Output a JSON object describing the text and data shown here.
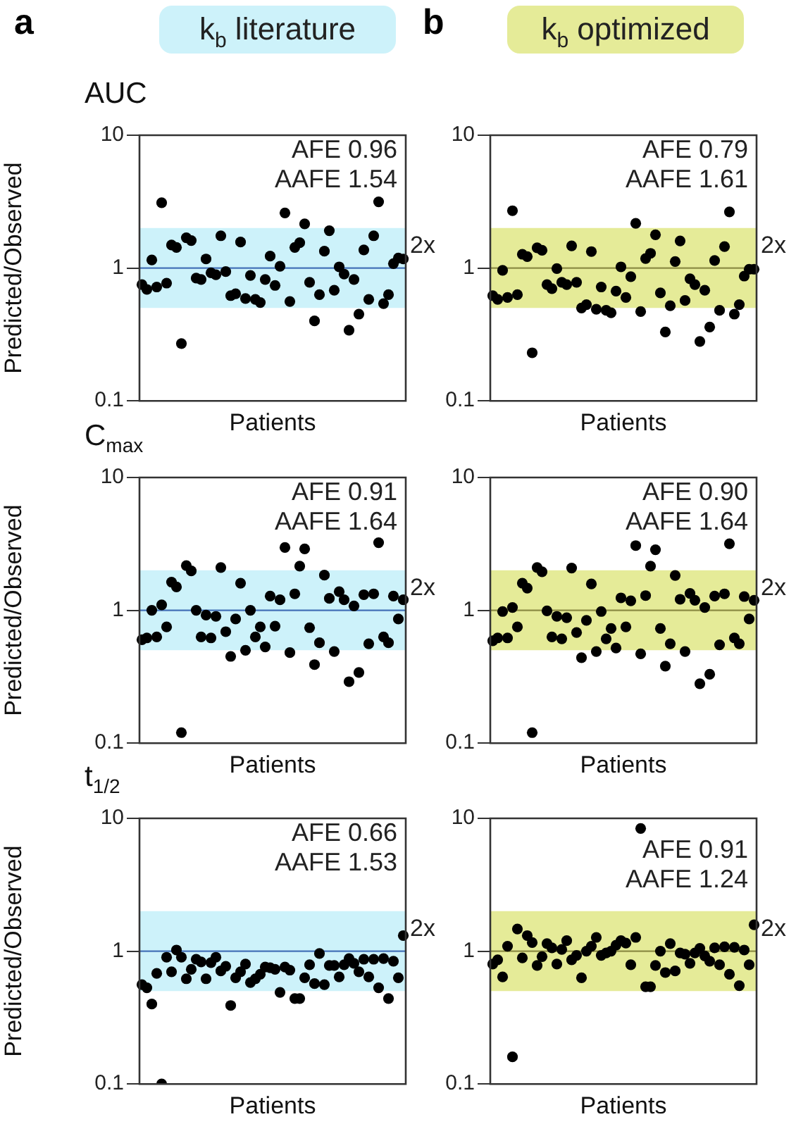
{
  "chart_data": [
    {
      "type": "scatter",
      "title": "k$_{b}$ literature",
      "subtitle": "AUC",
      "xlabel": "Patients",
      "ylabel": "Predicted/Observed",
      "annotations": [
        "a",
        "AFE 0.96",
        "AAFE 1.54"
      ],
      "categories": [
        null,
        null,
        null,
        null,
        null,
        null,
        null,
        null,
        null,
        null,
        null,
        null,
        null,
        null,
        null,
        null,
        null,
        null,
        null,
        null,
        null,
        null,
        null,
        null,
        null,
        null,
        null,
        null,
        null,
        null,
        null,
        null,
        null,
        null,
        null,
        null,
        null,
        null,
        null,
        null,
        null,
        null,
        null,
        null,
        null,
        null,
        null,
        null,
        null,
        null,
        null,
        null,
        null,
        null
      ],
      "values": [
        0.75,
        0.69,
        1.15,
        0.72,
        3.1,
        0.77,
        1.49,
        1.43,
        0.27,
        1.69,
        1.61,
        0.84,
        0.82,
        1.17,
        0.92,
        0.89,
        1.75,
        0.94,
        0.62,
        0.64,
        1.57,
        0.59,
        0.88,
        0.58,
        0.55,
        0.82,
        1.23,
        0.74,
        1.03,
        2.6,
        0.56,
        1.43,
        1.55,
        2.15,
        0.78,
        0.4,
        0.63,
        1.34,
        1.91,
        0.68,
        1.02,
        0.9,
        0.34,
        0.82,
        0.45,
        1.37,
        0.58,
        1.75,
        3.15,
        0.54,
        0.63,
        1.08,
        1.19,
        1.17
      ],
      "color": "#000000",
      "marker": "circle",
      "log": "y",
      "ylim": [
        0.1,
        10
      ],
      "yticks": [
        0.1,
        1,
        10
      ],
      "tick_labels": "y",
      "bands": [
        {
          "axis": "y",
          "from": 0.5,
          "to": 2,
          "label": "2x",
          "color": "#cdf2fa"
        }
      ],
      "ref_lines": [
        {
          "axis": "y",
          "value": 1,
          "color": "#4472b8"
        }
      ]
    },
    {
      "type": "scatter",
      "title": "k$_{b}$ optimized",
      "xlabel": "Patients",
      "annotations": [
        "b",
        "AFE 0.79",
        "AAFE 1.61"
      ],
      "categories": [
        null,
        null,
        null,
        null,
        null,
        null,
        null,
        null,
        null,
        null,
        null,
        null,
        null,
        null,
        null,
        null,
        null,
        null,
        null,
        null,
        null,
        null,
        null,
        null,
        null,
        null,
        null,
        null,
        null,
        null,
        null,
        null,
        null,
        null,
        null,
        null,
        null,
        null,
        null,
        null,
        null,
        null,
        null,
        null,
        null,
        null,
        null,
        null,
        null,
        null,
        null,
        null,
        null,
        null
      ],
      "values": [
        0.62,
        0.58,
        0.96,
        0.6,
        2.7,
        0.63,
        1.27,
        1.22,
        0.23,
        1.42,
        1.36,
        0.75,
        0.7,
        0.99,
        0.78,
        0.75,
        1.47,
        0.78,
        0.5,
        0.53,
        1.33,
        0.49,
        0.72,
        0.48,
        0.46,
        0.67,
        1.02,
        0.6,
        0.86,
        2.17,
        0.47,
        1.18,
        1.29,
        1.78,
        0.65,
        0.33,
        0.52,
        1.12,
        1.6,
        0.57,
        0.83,
        0.75,
        0.28,
        0.68,
        0.36,
        1.14,
        0.48,
        1.45,
        2.65,
        0.45,
        0.53,
        0.87,
        0.98,
        0.98
      ],
      "color": "#000000",
      "marker": "circle",
      "log": "y",
      "ylim": [
        0.1,
        10
      ],
      "yticks": [
        0.1,
        1,
        10
      ],
      "tick_labels": "y",
      "bands": [
        {
          "axis": "y",
          "from": 0.5,
          "to": 2,
          "label": "2x",
          "color": "#e5eb98"
        }
      ],
      "ref_lines": [
        {
          "axis": "y",
          "value": 1,
          "color": "#8c8c44"
        }
      ]
    },
    {
      "type": "scatter",
      "subtitle": "C$_{max}$",
      "xlabel": "Patients",
      "ylabel": "Predicted/Observed",
      "annotations": [
        "AFE 0.91",
        "AAFE 1.64"
      ],
      "categories": [
        null,
        null,
        null,
        null,
        null,
        null,
        null,
        null,
        null,
        null,
        null,
        null,
        null,
        null,
        null,
        null,
        null,
        null,
        null,
        null,
        null,
        null,
        null,
        null,
        null,
        null,
        null,
        null,
        null,
        null,
        null,
        null,
        null,
        null,
        null,
        null,
        null,
        null,
        null,
        null,
        null,
        null,
        null,
        null,
        null,
        null,
        null,
        null,
        null,
        null,
        null,
        null,
        null,
        null
      ],
      "values": [
        0.6,
        0.62,
        1.0,
        0.63,
        1.1,
        0.75,
        1.63,
        1.5,
        0.12,
        2.17,
        1.98,
        1.0,
        0.63,
        0.92,
        0.62,
        0.9,
        2.1,
        0.69,
        0.45,
        0.86,
        1.6,
        0.5,
        1.0,
        0.63,
        0.75,
        0.53,
        1.28,
        0.76,
        1.2,
        2.97,
        0.48,
        1.33,
        2.15,
        2.9,
        0.74,
        0.39,
        0.57,
        1.84,
        1.23,
        0.49,
        1.38,
        1.2,
        0.29,
        1.08,
        0.34,
        1.31,
        0.56,
        1.33,
        3.23,
        0.63,
        0.57,
        1.28,
        0.86,
        1.2
      ],
      "color": "#000000",
      "marker": "circle",
      "log": "y",
      "ylim": [
        0.1,
        10
      ],
      "yticks": [
        0.1,
        1,
        10
      ],
      "tick_labels": "y",
      "bands": [
        {
          "axis": "y",
          "from": 0.5,
          "to": 2,
          "label": "2x",
          "color": "#cdf2fa"
        }
      ],
      "ref_lines": [
        {
          "axis": "y",
          "value": 1,
          "color": "#4472b8"
        }
      ]
    },
    {
      "type": "scatter",
      "xlabel": "Patients",
      "annotations": [
        "AFE 0.90",
        "AAFE 1.64"
      ],
      "categories": [
        null,
        null,
        null,
        null,
        null,
        null,
        null,
        null,
        null,
        null,
        null,
        null,
        null,
        null,
        null,
        null,
        null,
        null,
        null,
        null,
        null,
        null,
        null,
        null,
        null,
        null,
        null,
        null,
        null,
        null,
        null,
        null,
        null,
        null,
        null,
        null,
        null,
        null,
        null,
        null,
        null,
        null,
        null,
        null,
        null,
        null,
        null,
        null,
        null,
        null,
        null,
        null,
        null,
        null
      ],
      "values": [
        0.59,
        0.62,
        0.98,
        0.62,
        1.05,
        0.75,
        1.6,
        1.47,
        0.12,
        2.1,
        1.95,
        0.99,
        0.63,
        0.9,
        0.61,
        0.88,
        2.08,
        0.68,
        0.44,
        0.84,
        1.58,
        0.49,
        0.98,
        0.61,
        0.73,
        0.52,
        1.24,
        0.75,
        1.18,
        3.07,
        0.47,
        1.29,
        2.15,
        2.86,
        0.73,
        0.38,
        0.56,
        1.83,
        1.21,
        0.49,
        1.34,
        1.19,
        0.28,
        1.05,
        0.33,
        1.28,
        0.55,
        1.33,
        3.17,
        0.62,
        0.56,
        1.27,
        0.86,
        1.19
      ],
      "color": "#000000",
      "marker": "circle",
      "log": "y",
      "ylim": [
        0.1,
        10
      ],
      "yticks": [
        0.1,
        1,
        10
      ],
      "tick_labels": "y",
      "bands": [
        {
          "axis": "y",
          "from": 0.5,
          "to": 2,
          "label": "2x",
          "color": "#e5eb98"
        }
      ],
      "ref_lines": [
        {
          "axis": "y",
          "value": 1,
          "color": "#8c8c44"
        }
      ]
    },
    {
      "type": "scatter",
      "subtitle": "t$_{1/2}$",
      "xlabel": "Patients",
      "ylabel": "Predicted/Observed",
      "annotations": [
        "AFE 0.66",
        "AAFE 1.53"
      ],
      "categories": [
        null,
        null,
        null,
        null,
        null,
        null,
        null,
        null,
        null,
        null,
        null,
        null,
        null,
        null,
        null,
        null,
        null,
        null,
        null,
        null,
        null,
        null,
        null,
        null,
        null,
        null,
        null,
        null,
        null,
        null,
        null,
        null,
        null,
        null,
        null,
        null,
        null,
        null,
        null,
        null,
        null,
        null,
        null,
        null,
        null,
        null,
        null,
        null,
        null,
        null,
        null,
        null,
        null,
        null
      ],
      "values": [
        0.56,
        0.53,
        0.4,
        0.68,
        0.1,
        0.9,
        0.7,
        1.02,
        0.9,
        0.62,
        0.73,
        0.87,
        0.83,
        0.62,
        0.82,
        0.9,
        0.71,
        0.77,
        0.39,
        0.63,
        0.7,
        0.8,
        0.58,
        0.62,
        0.67,
        0.76,
        0.75,
        0.73,
        0.49,
        0.76,
        0.72,
        0.44,
        0.44,
        0.63,
        0.79,
        0.57,
        0.96,
        0.56,
        0.78,
        0.78,
        0.64,
        0.79,
        0.88,
        0.81,
        0.7,
        0.87,
        0.64,
        0.87,
        0.53,
        0.88,
        0.44,
        0.84,
        0.63,
        1.31
      ],
      "color": "#000000",
      "marker": "circle",
      "log": "y",
      "ylim": [
        0.1,
        10
      ],
      "yticks": [
        0.1,
        1,
        10
      ],
      "tick_labels": "y",
      "bands": [
        {
          "axis": "y",
          "from": 0.5,
          "to": 2,
          "label": "2x",
          "color": "#cdf2fa"
        }
      ],
      "ref_lines": [
        {
          "axis": "y",
          "value": 1,
          "color": "#4472b8"
        }
      ]
    },
    {
      "type": "scatter",
      "xlabel": "Patients",
      "annotations": [
        "AFE 0.91",
        "AAFE 1.24"
      ],
      "categories": [
        null,
        null,
        null,
        null,
        null,
        null,
        null,
        null,
        null,
        null,
        null,
        null,
        null,
        null,
        null,
        null,
        null,
        null,
        null,
        null,
        null,
        null,
        null,
        null,
        null,
        null,
        null,
        null,
        null,
        null,
        null,
        null,
        null,
        null,
        null,
        null,
        null,
        null,
        null,
        null,
        null,
        null,
        null,
        null,
        null,
        null,
        null,
        null,
        null,
        null,
        null,
        null,
        null,
        null
      ],
      "values": [
        0.8,
        0.86,
        0.64,
        1.09,
        0.16,
        1.47,
        0.89,
        1.31,
        1.16,
        0.78,
        0.91,
        1.14,
        1.06,
        0.8,
        1.03,
        1.2,
        0.86,
        0.93,
        0.63,
        1.0,
        1.09,
        1.27,
        0.93,
        0.97,
        1.0,
        1.11,
        1.2,
        1.15,
        0.79,
        1.27,
        8.4,
        0.54,
        0.54,
        0.78,
        1.0,
        0.69,
        1.14,
        0.71,
        0.97,
        0.95,
        0.81,
        0.97,
        1.05,
        0.92,
        0.84,
        1.06,
        0.79,
        1.08,
        0.67,
        1.07,
        0.55,
        1.02,
        0.79,
        1.58
      ],
      "color": "#000000",
      "marker": "circle",
      "log": "y",
      "ylim": [
        0.1,
        10
      ],
      "yticks": [
        0.1,
        1,
        10
      ],
      "tick_labels": "y",
      "bands": [
        {
          "axis": "y",
          "from": 0.5,
          "to": 2,
          "label": "2x",
          "color": "#e5eb98"
        }
      ],
      "ref_lines": [
        {
          "axis": "y",
          "value": 1,
          "color": "#8c8c44"
        }
      ]
    }
  ]
}
